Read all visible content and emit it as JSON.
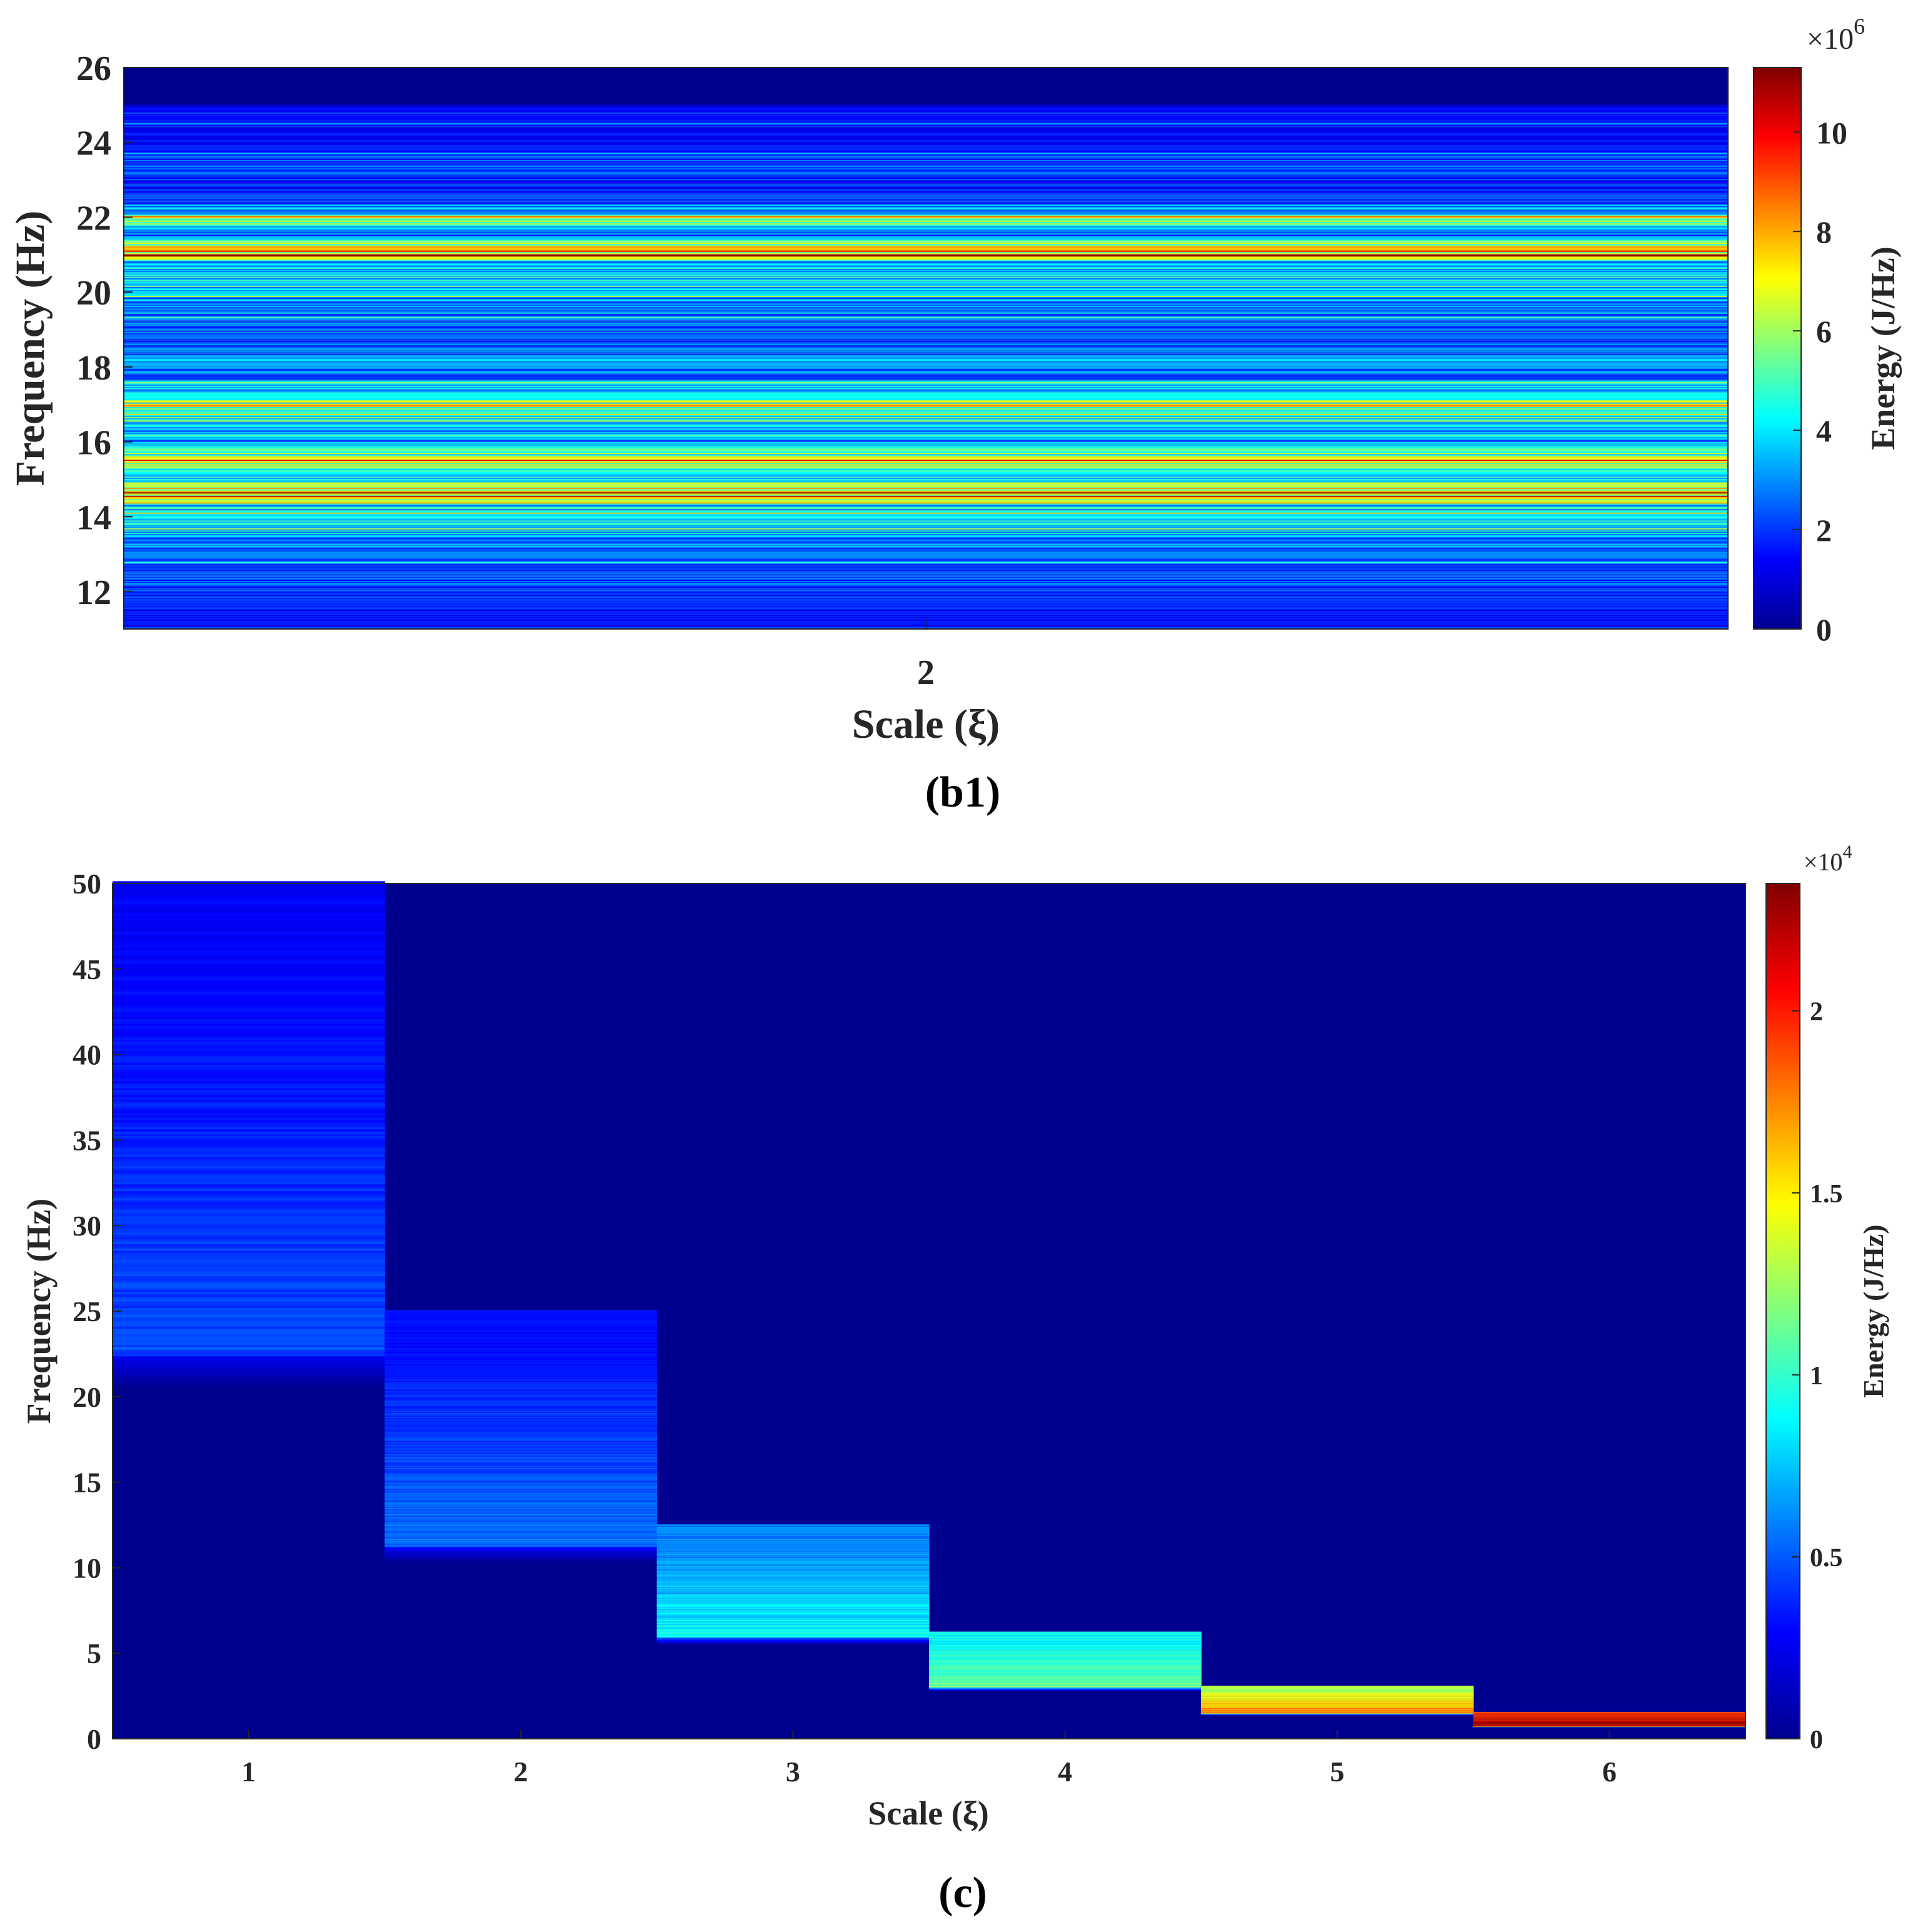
{
  "chart_data": [
    {
      "type": "heatmap",
      "panel_label": "(b1)",
      "xlabel": "Scale (ξ)",
      "ylabel": "Frequency (Hz)",
      "colorbar_label": "Energy (J/Hz)",
      "colorbar_exponent": "×10",
      "colorbar_exponent_power": "6",
      "x_ticks": [
        "2"
      ],
      "x_categories": [
        2
      ],
      "ylim": [
        11,
        26
      ],
      "y_ticks": [
        12,
        14,
        16,
        18,
        20,
        22,
        24,
        26
      ],
      "clim": [
        0,
        11300000
      ],
      "colorbar_ticks": [
        0,
        2,
        4,
        6,
        8,
        10
      ],
      "colormap": "jet",
      "grid": false,
      "columns": [
        {
          "x": 2,
          "freq_range": [
            11,
            26
          ],
          "bands": [
            {
              "f": 11.1,
              "e": 1500000
            },
            {
              "f": 11.6,
              "e": 1800000
            },
            {
              "f": 12.2,
              "e": 2400000
            },
            {
              "f": 12.8,
              "e": 2700000
            },
            {
              "f": 13.4,
              "e": 3200000
            },
            {
              "f": 13.8,
              "e": 4600000
            },
            {
              "f": 14.3,
              "e": 3800000
            },
            {
              "f": 14.6,
              "e": 9800000
            },
            {
              "f": 14.85,
              "e": 5500000
            },
            {
              "f": 15.2,
              "e": 4300000
            },
            {
              "f": 15.5,
              "e": 7800000
            },
            {
              "f": 15.9,
              "e": 3200000
            },
            {
              "f": 16.3,
              "e": 3500000
            },
            {
              "f": 16.8,
              "e": 7000000
            },
            {
              "f": 17.3,
              "e": 4200000
            },
            {
              "f": 17.8,
              "e": 2600000
            },
            {
              "f": 18.2,
              "e": 3300000
            },
            {
              "f": 18.7,
              "e": 2500000
            },
            {
              "f": 19.2,
              "e": 2800000
            },
            {
              "f": 19.7,
              "e": 3000000
            },
            {
              "f": 20.2,
              "e": 3600000
            },
            {
              "f": 20.5,
              "e": 4500000
            },
            {
              "f": 20.8,
              "e": 3000000
            },
            {
              "f": 21.0,
              "e": 9200000
            },
            {
              "f": 21.5,
              "e": 2600000
            },
            {
              "f": 21.9,
              "e": 6800000
            },
            {
              "f": 22.4,
              "e": 2300000
            },
            {
              "f": 22.9,
              "e": 2000000
            },
            {
              "f": 23.4,
              "e": 2600000
            },
            {
              "f": 23.9,
              "e": 1700000
            },
            {
              "f": 24.4,
              "e": 1700000
            },
            {
              "f": 24.9,
              "e": 1300000
            }
          ],
          "top_gap_above": 25.0
        }
      ]
    },
    {
      "type": "heatmap",
      "panel_label": "(c)",
      "xlabel": "Scale (ξ)",
      "ylabel": "Frequency (Hz)",
      "colorbar_label": "Energy (J/Hz)",
      "colorbar_exponent": "×10",
      "colorbar_exponent_power": "4",
      "x_ticks": [
        "1",
        "2",
        "3",
        "4",
        "5",
        "6"
      ],
      "x_categories": [
        1,
        2,
        3,
        4,
        5,
        6
      ],
      "ylim": [
        0,
        50
      ],
      "y_ticks": [
        0,
        5,
        10,
        15,
        20,
        25,
        30,
        35,
        40,
        45,
        50
      ],
      "clim": [
        0,
        23500
      ],
      "colorbar_ticks": [
        "0",
        "0.5",
        "1",
        "1.5",
        "2"
      ],
      "colorbar_tick_values": [
        0,
        0.5,
        1,
        1.5,
        2
      ],
      "colormap": "jet",
      "grid": false,
      "columns": [
        {
          "x": 1,
          "freq_range": [
            20.5,
            50
          ],
          "energy_range": [
            2800,
            4700
          ]
        },
        {
          "x": 2,
          "freq_range": [
            10.3,
            25
          ],
          "energy_range": [
            3200,
            5600
          ]
        },
        {
          "x": 3,
          "freq_range": [
            5.5,
            12.5
          ],
          "energy_range": [
            6000,
            8800
          ]
        },
        {
          "x": 4,
          "freq_range": [
            2.8,
            6.25
          ],
          "energy_range": [
            8800,
            11200
          ]
        },
        {
          "x": 5,
          "freq_range": [
            1.4,
            3.1
          ],
          "energy_range": [
            13000,
            17500
          ]
        },
        {
          "x": 6,
          "freq_range": [
            0.7,
            1.56
          ],
          "energy_range": [
            20000,
            23500
          ]
        }
      ]
    }
  ]
}
